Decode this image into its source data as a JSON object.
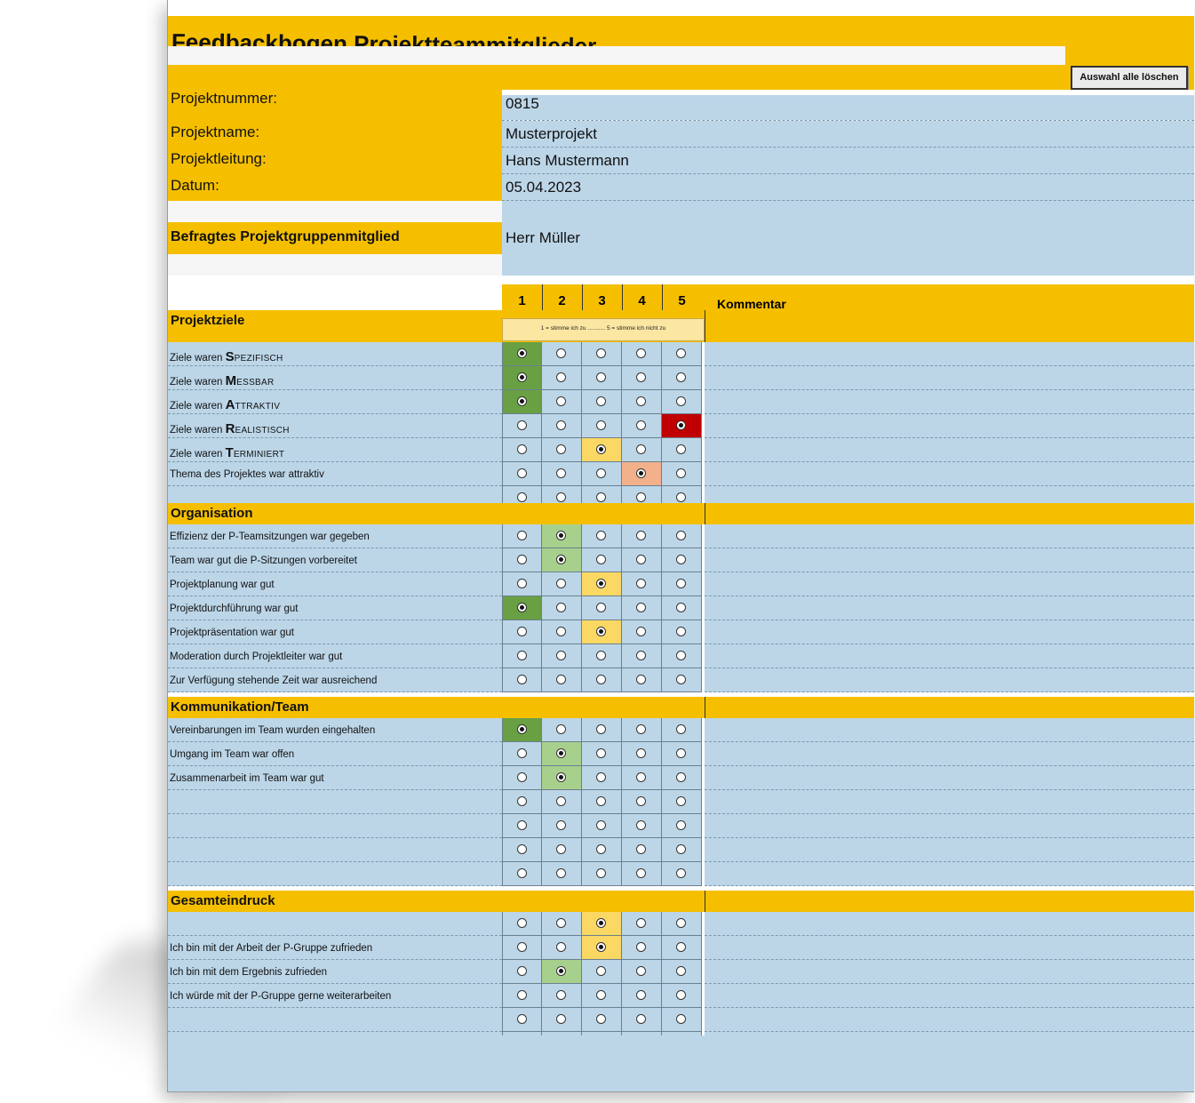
{
  "title": "Feedbackbogen Projektteammitglieder",
  "clear_button": "Auswahl alle löschen",
  "info": [
    {
      "label": "Projektnummer:",
      "value": "0815"
    },
    {
      "label": "Projektname:",
      "value": "Musterprojekt"
    },
    {
      "label": "Projektleitung:",
      "value": "Hans Mustermann"
    },
    {
      "label": "Datum:",
      "value": "05.04.2023"
    }
  ],
  "member": {
    "label": "Befragtes Projektgruppenmitglied",
    "value": "Herr Müller"
  },
  "scale": {
    "numbers": [
      "1",
      "2",
      "3",
      "4",
      "5"
    ],
    "comment_header": "Kommentar",
    "legend": "1 = stimme ich zu ........... 5 = stimme ich nicht zu"
  },
  "colors": {
    "1": "#68a043",
    "2": "#a8d08d",
    "3": "#fbd864",
    "4": "#f2b08b",
    "5": "#c00000",
    "header": "#f5bf00",
    "body": "#bcd6e8"
  },
  "sections": [
    {
      "title": "Projektziele",
      "questions": [
        {
          "prefix": "Ziele waren ",
          "initial": "S",
          "rest": "PEZIFISCH",
          "selected": 1
        },
        {
          "prefix": "Ziele waren ",
          "initial": "M",
          "rest": "ESSBAR",
          "selected": 1
        },
        {
          "prefix": "Ziele waren ",
          "initial": "A",
          "rest": "TTRAKTIV",
          "selected": 1
        },
        {
          "prefix": "Ziele waren ",
          "initial": "R",
          "rest": "EALISTISCH",
          "selected": 5
        },
        {
          "prefix": "Ziele waren ",
          "initial": "T",
          "rest": "ERMINIERT",
          "selected": 3
        },
        {
          "text": "Thema des Projektes war attraktiv",
          "selected": 4
        },
        {
          "text": "",
          "selected": 0
        }
      ]
    },
    {
      "title": "Organisation",
      "questions": [
        {
          "text": "Effizienz der P-Teamsitzungen war gegeben",
          "selected": 2
        },
        {
          "text": "Team war gut die P-Sitzungen vorbereitet",
          "selected": 2
        },
        {
          "text": "Projektplanung war gut",
          "selected": 3
        },
        {
          "text": "Projektdurchführung war gut",
          "selected": 1
        },
        {
          "text": "Projektpräsentation war gut",
          "selected": 3
        },
        {
          "text": "Moderation durch Projektleiter war gut",
          "selected": 0
        },
        {
          "text": "Zur Verfügung stehende Zeit war ausreichend",
          "selected": 0
        }
      ]
    },
    {
      "title": "Kommunikation/Team",
      "questions": [
        {
          "text": "Vereinbarungen im Team wurden eingehalten",
          "selected": 1
        },
        {
          "text": "Umgang im Team war offen",
          "selected": 2
        },
        {
          "text": "Zusammenarbeit im Team war gut",
          "selected": 2
        },
        {
          "text": "",
          "selected": 0
        },
        {
          "text": "",
          "selected": 0
        },
        {
          "text": "",
          "selected": 0
        },
        {
          "text": "",
          "selected": 0
        }
      ]
    },
    {
      "title": "Gesamteindruck",
      "questions": [
        {
          "text": "",
          "selected": 3
        },
        {
          "text": "Ich bin mit der Arbeit der P-Gruppe zufrieden",
          "selected": 3
        },
        {
          "text": "Ich bin mit dem Ergebnis zufrieden",
          "selected": 2
        },
        {
          "text": "Ich würde mit der P-Gruppe gerne weiterarbeiten",
          "selected": 0
        },
        {
          "text": "",
          "selected": 0
        },
        {
          "text": "",
          "selected": 0
        },
        {
          "text": "",
          "selected": 0
        }
      ]
    }
  ]
}
